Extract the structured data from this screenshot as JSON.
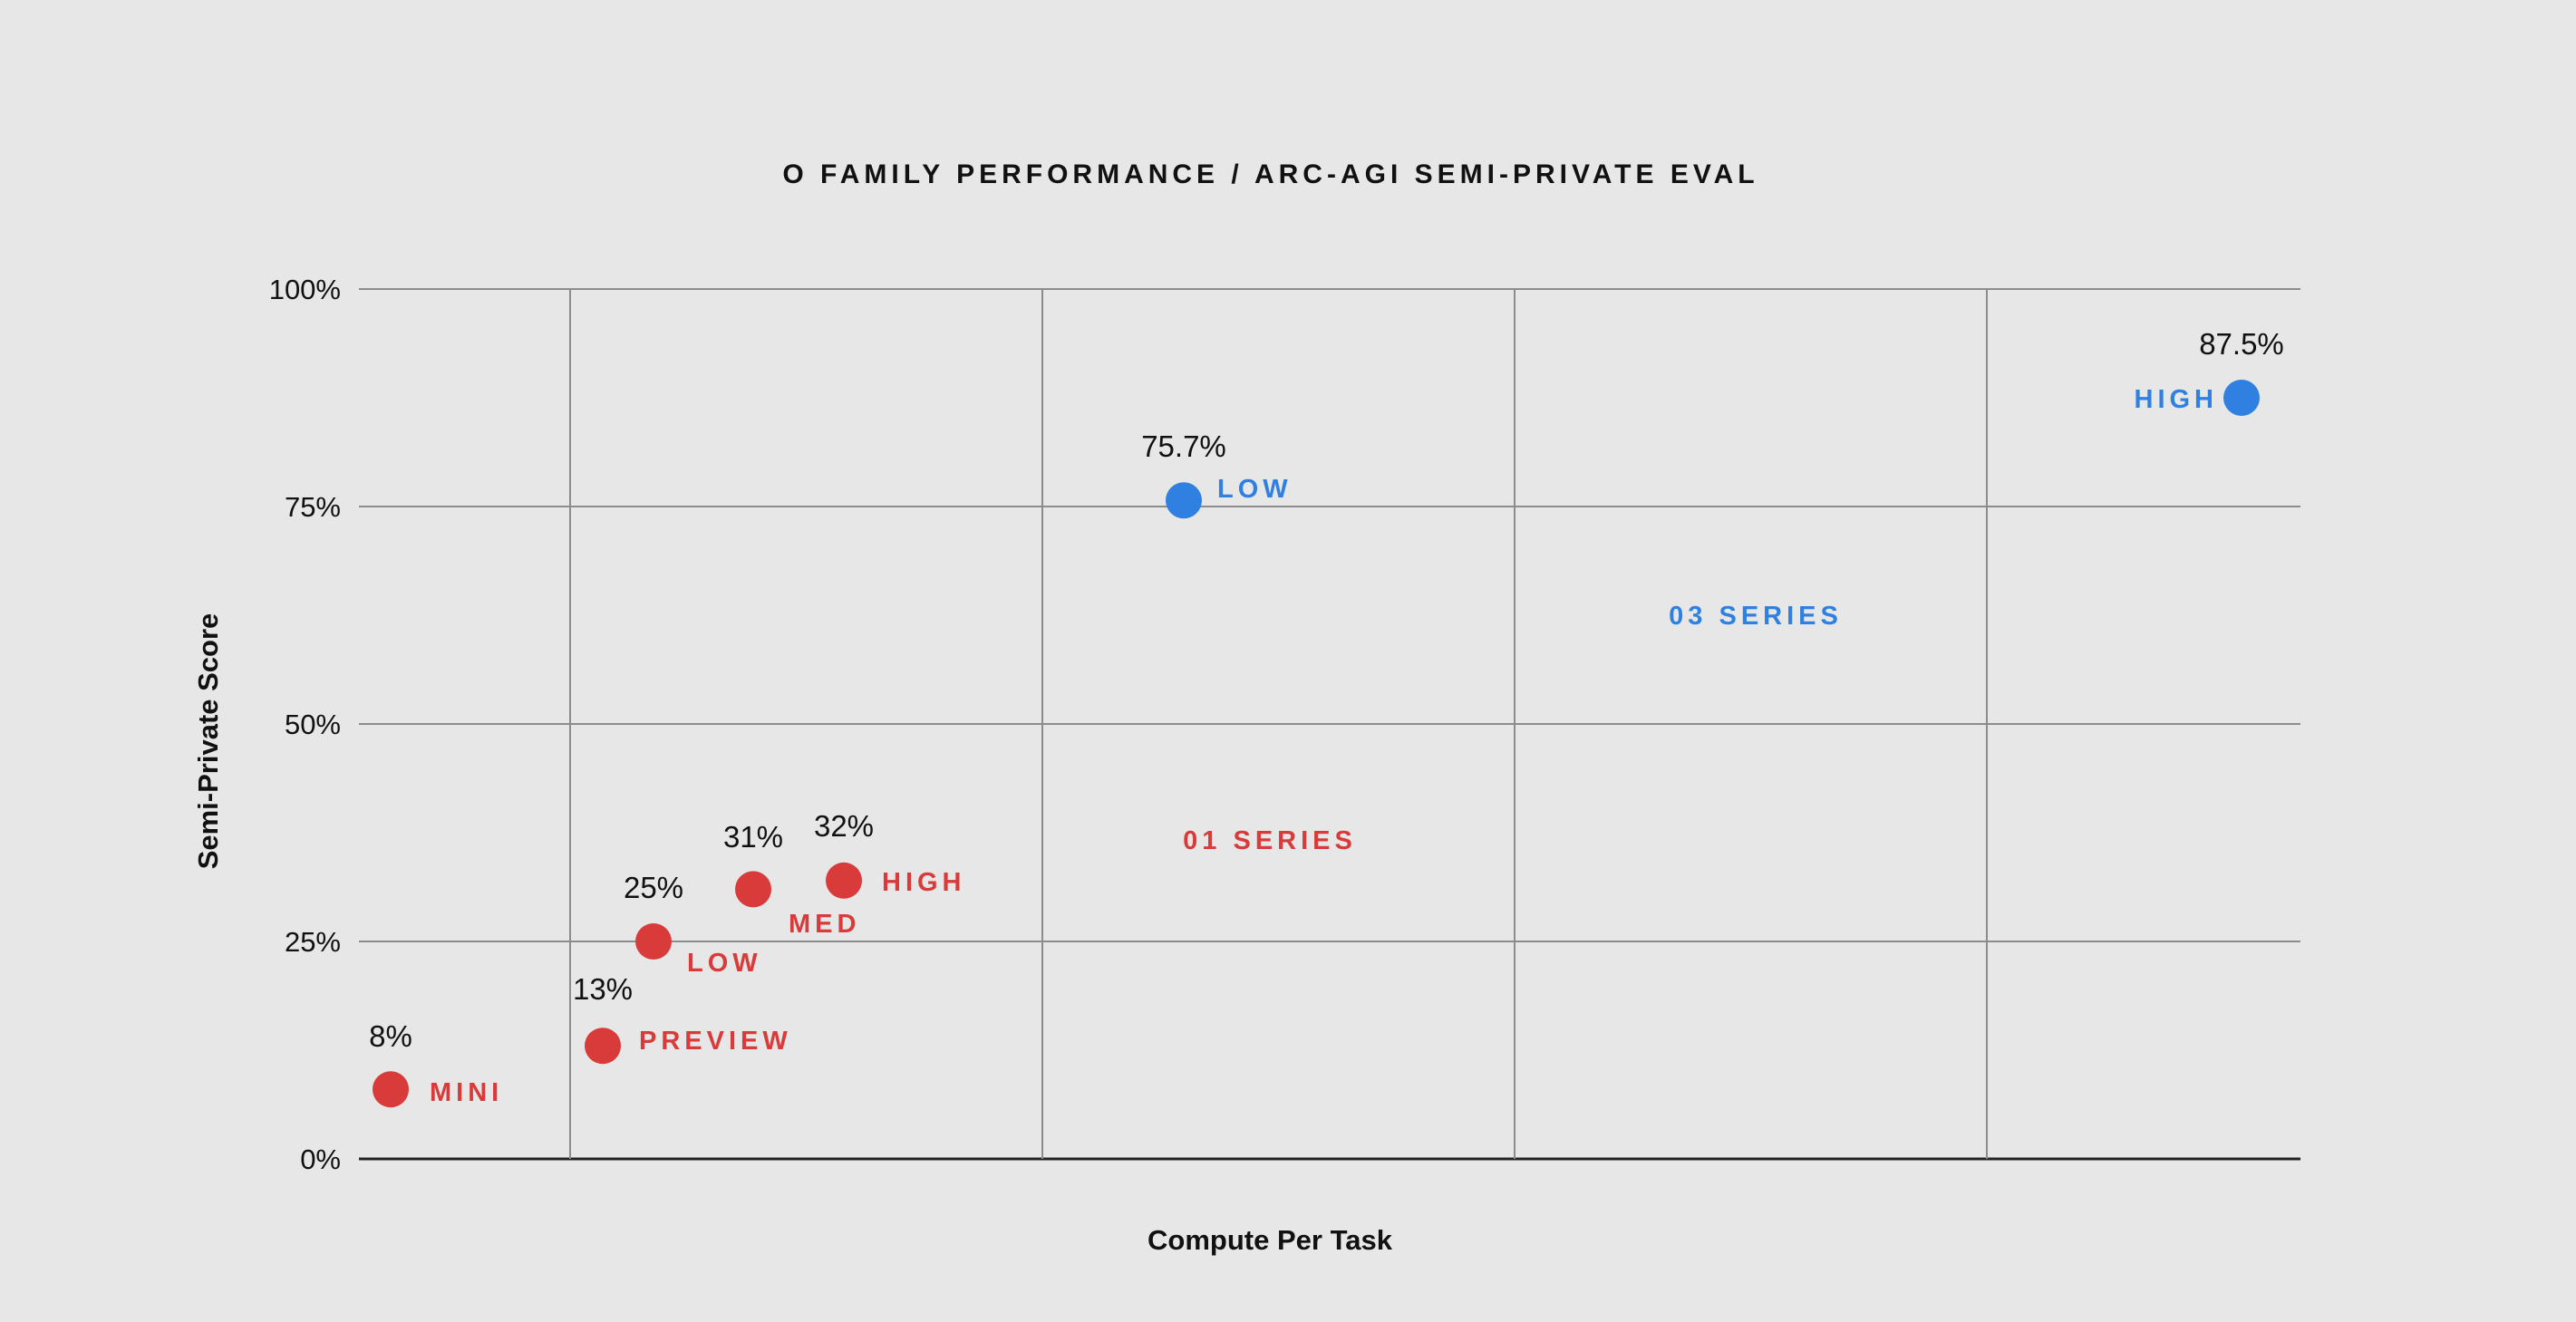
{
  "chart_data": {
    "type": "scatter",
    "title": "O FAMILY PERFORMANCE / ARC-AGI SEMI-PRIVATE EVAL",
    "xlabel": "Compute Per Task",
    "ylabel": "Semi-Private Score",
    "ylim": [
      0,
      100
    ],
    "yticks": [
      {
        "value": 0,
        "label": "0%"
      },
      {
        "value": 25,
        "label": "25%"
      },
      {
        "value": 50,
        "label": "50%"
      },
      {
        "value": 75,
        "label": "75%"
      },
      {
        "value": 100,
        "label": "100%"
      }
    ],
    "x_tick_labels": false,
    "grid": true,
    "series": [
      {
        "name": "01 SERIES",
        "color": "#d93a3a",
        "points": [
          {
            "label": "MINI",
            "y": 8,
            "value_label": "8%"
          },
          {
            "label": "PREVIEW",
            "y": 13,
            "value_label": "13%"
          },
          {
            "label": "LOW",
            "y": 25,
            "value_label": "25%"
          },
          {
            "label": "MED",
            "y": 31,
            "value_label": "31%"
          },
          {
            "label": "HIGH",
            "y": 32,
            "value_label": "32%"
          }
        ]
      },
      {
        "name": "03 SERIES",
        "color": "#2f80e0",
        "points": [
          {
            "label": "LOW",
            "y": 75.7,
            "value_label": "75.7%"
          },
          {
            "label": "HIGH",
            "y": 87.5,
            "value_label": "87.5%"
          }
        ]
      }
    ]
  }
}
